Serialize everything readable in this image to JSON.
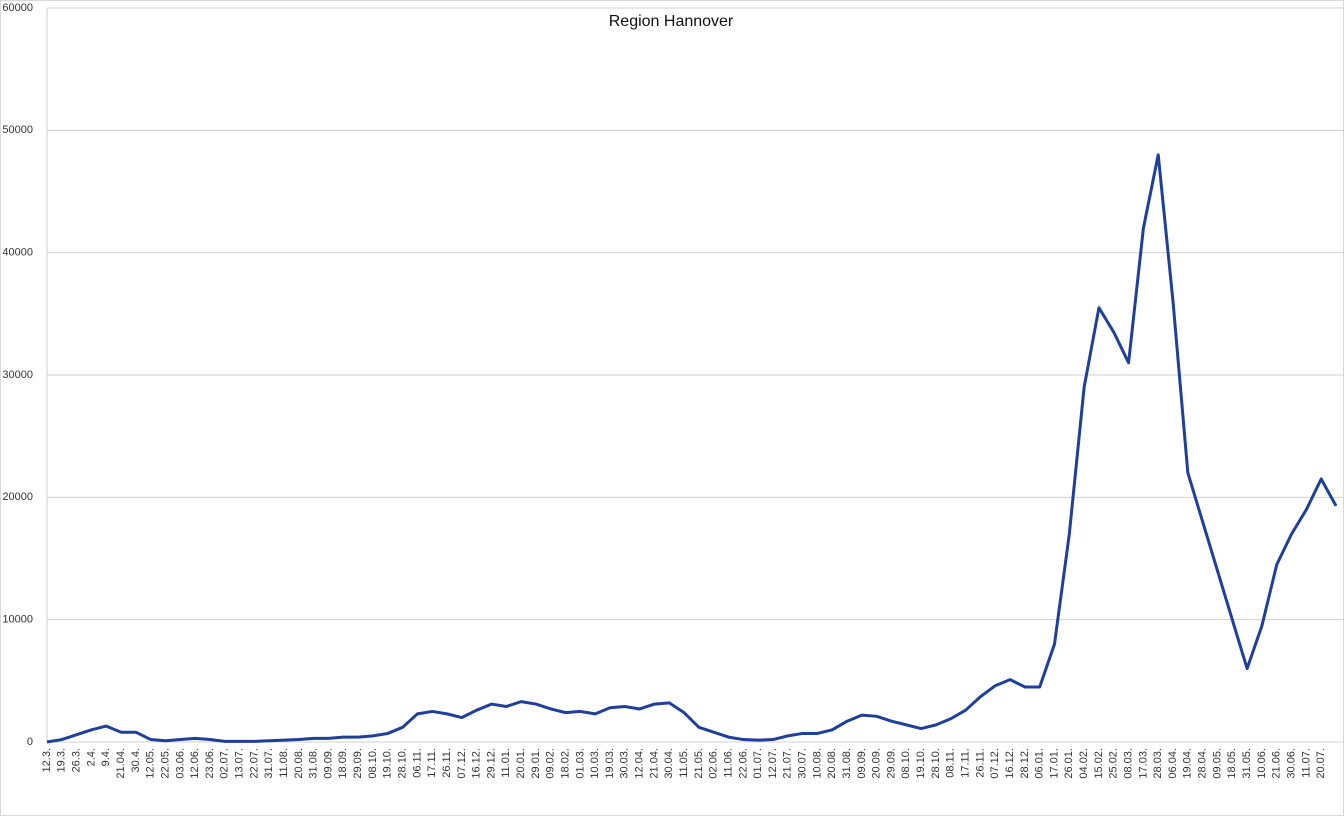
{
  "chart_data": {
    "type": "line",
    "title": "Region Hannover",
    "categories": [
      "12.3.",
      "19.3.",
      "26.3.",
      "2.4.",
      "9.4.",
      "21.04.",
      "30.4.",
      "12.05.",
      "22.05.",
      "03.06.",
      "12.06.",
      "23.06.",
      "02.07.",
      "13.07.",
      "22.07.",
      "31.07.",
      "11.08.",
      "20.08.",
      "31.08.",
      "09.09.",
      "18.09.",
      "29.09.",
      "08.10.",
      "19.10.",
      "28.10.",
      "06.11.",
      "17.11.",
      "26.11.",
      "07.12.",
      "16.12.",
      "29.12.",
      "11.01.",
      "20.01.",
      "29.01.",
      "09.02.",
      "18.02.",
      "01.03.",
      "10.03.",
      "19.03.",
      "30.03.",
      "12.04.",
      "21.04.",
      "30.04.",
      "11.05.",
      "21.05.",
      "02.06.",
      "11.06.",
      "22.06.",
      "01.07.",
      "12.07.",
      "21.07.",
      "30.07.",
      "10.08.",
      "20.08.",
      "31.08.",
      "09.09.",
      "20.09.",
      "29.09.",
      "08.10.",
      "19.10.",
      "28.10.",
      "08.11.",
      "17.11.",
      "26.11.",
      "07.12.",
      "16.12.",
      "28.12.",
      "06.01.",
      "17.01.",
      "26.01.",
      "04.02.",
      "15.02.",
      "25.02.",
      "08.03.",
      "17.03.",
      "28.03.",
      "06.04.",
      "19.04.",
      "28.04.",
      "09.05.",
      "18.05.",
      "31.05.",
      "10.06.",
      "21.06.",
      "30.06.",
      "11.07.",
      "20.07.",
      null
    ],
    "series": [
      {
        "name": "Region Hannover",
        "color": "#1f3f99",
        "values": [
          0,
          200,
          600,
          1000,
          1300,
          800,
          800,
          200,
          100,
          200,
          300,
          200,
          50,
          50,
          50,
          100,
          150,
          200,
          300,
          300,
          400,
          400,
          500,
          700,
          1200,
          2300,
          2500,
          2300,
          2000,
          2600,
          3100,
          2900,
          3300,
          3100,
          2700,
          2400,
          2500,
          2300,
          2800,
          2900,
          2700,
          3100,
          3200,
          2400,
          1200,
          800,
          400,
          200,
          150,
          200,
          500,
          700,
          700,
          1000,
          1700,
          2200,
          2100,
          1700,
          1400,
          1100,
          1400,
          1900,
          2600,
          3700,
          4600,
          5100,
          4500,
          4500,
          8000,
          17000,
          29000,
          35500,
          33500,
          31000,
          42000,
          48000,
          36000,
          22000,
          18000,
          14000,
          10000,
          6000,
          9500,
          14500,
          17000,
          19000,
          21500,
          19300
        ]
      }
    ],
    "ylim": [
      0,
      60000
    ],
    "yticks": [
      0,
      10000,
      20000,
      30000,
      40000,
      50000,
      60000
    ],
    "grid": true
  }
}
